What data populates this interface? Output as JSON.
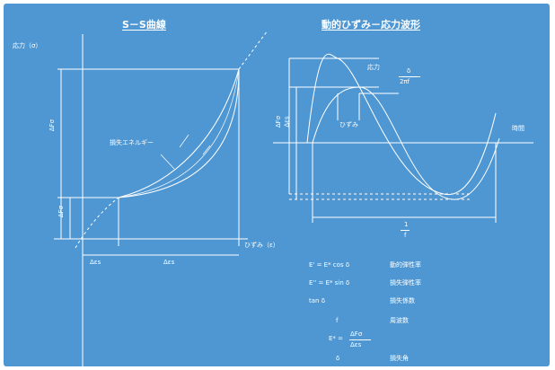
{
  "left": {
    "title": "S－S曲線",
    "y_axis_label": "応力（σ）",
    "energy_label": "損失エネルギー",
    "x_axis_label": "ひずみ（ε）",
    "left_vertical_1": "ΔFσ",
    "left_vertical_2": "ΔFσ",
    "bottom_1": "Δεs",
    "bottom_2": "Δεs"
  },
  "right": {
    "title": "動的ひずみ－応力波形",
    "stress_label": "応力",
    "strain_label": "ひずみ",
    "time_label": "時間",
    "delta_num": "δ",
    "delta_den": "2πf",
    "vertical_1": "ΔFσ",
    "vertical_2": "Δεs",
    "period_num": "1",
    "period_den": "f"
  },
  "legend": [
    {
      "formula": "E' = E* cos δ",
      "desc": "動的弾性率"
    },
    {
      "formula": "E'' = E* sin δ",
      "desc": "損失弾性率"
    },
    {
      "formula": "tan δ",
      "desc": "損失係数"
    },
    {
      "formula": "f",
      "desc": "周波数"
    },
    {
      "formula_prefix": "E* =",
      "formula_num": "ΔFσ",
      "formula_den": "Δεs",
      "desc": ""
    },
    {
      "formula": "δ",
      "desc": "損失角"
    }
  ],
  "colors": {
    "background": "#4f97d2",
    "line": "#ffffff"
  }
}
